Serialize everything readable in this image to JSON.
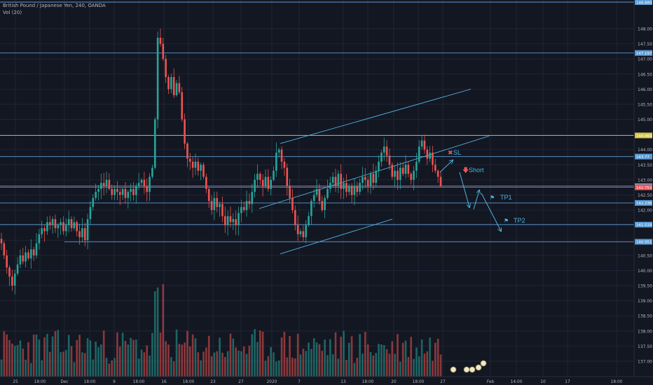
{
  "header": {
    "symbol_line": "British Pound / Japanese Yen, 240, OANDA",
    "volume_line": "Vol (20)"
  },
  "colors": {
    "background": "#131722",
    "grid": "#1f2536",
    "up": "#26a69a",
    "down": "#ef5350",
    "level": "#5b9bd5",
    "yellow_level": "#d6c642",
    "annotation": "#4fb3e0",
    "axis_text": "#b2b5be"
  },
  "annotations": {
    "sl": "SL",
    "short": "Short",
    "tp1": "TP1",
    "tp2": "TP2"
  },
  "chart_data": {
    "type": "candlestick",
    "title": "British Pound / Japanese Yen, 240, OANDA",
    "indicator": "Vol (20)",
    "ylim": [
      136.6,
      148.9
    ],
    "y_ticks": [
      "137.00",
      "137.50",
      "138.00",
      "138.50",
      "139.00",
      "139.50",
      "140.00",
      "140.50",
      "141.00",
      "141.50",
      "142.00",
      "142.50",
      "143.00",
      "143.50",
      "144.00",
      "144.50",
      "145.00",
      "145.50",
      "146.00",
      "146.50",
      "147.00",
      "147.50",
      "148.00"
    ],
    "x_ticks": [
      "25",
      "18:00",
      "Dec",
      "18:00",
      "9",
      "18:00",
      "16",
      "18:00",
      "23",
      "27",
      "2020",
      "7",
      "13",
      "18:00",
      "20",
      "18:00",
      "27",
      "Feb",
      "14:00",
      "10",
      "17",
      "18:00"
    ],
    "price_levels": [
      {
        "label": "148.880",
        "value": 148.88,
        "color": "#5b9bd5"
      },
      {
        "label": "147.197",
        "value": 147.197,
        "color": "#5b9bd5"
      },
      {
        "label": "144.469",
        "value": 144.469,
        "color": "#d6c642"
      },
      {
        "label": "143.77",
        "value": 143.77,
        "color": "#5b9bd5"
      },
      {
        "label": "142.793",
        "value": 142.793,
        "color": "#5b9bd5"
      },
      {
        "label": "142.753",
        "value": 142.753,
        "color": "#ef5350"
      },
      {
        "label": "142.236",
        "value": 142.236,
        "color": "#5b9bd5"
      },
      {
        "label": "141.519",
        "value": 141.519,
        "color": "#5b9bd5"
      },
      {
        "label": "140.951",
        "value": 140.951,
        "color": "#5b9bd5"
      }
    ],
    "channel": {
      "upper": [
        [
          400,
          144.2
        ],
        [
          672,
          146.0
        ]
      ],
      "lower": [
        [
          370,
          142.05
        ],
        [
          698,
          144.45
        ]
      ],
      "base": [
        [
          400,
          140.55
        ],
        [
          560,
          141.7
        ]
      ]
    },
    "closes": [
      140.9,
      140.5,
      140.1,
      139.8,
      139.5,
      139.9,
      140.2,
      140.5,
      140.3,
      140.6,
      140.4,
      140.7,
      140.5,
      140.9,
      141.2,
      141.4,
      141.3,
      141.6,
      141.5,
      141.7,
      141.4,
      141.5,
      141.6,
      141.3,
      141.5,
      141.7,
      141.4,
      141.6,
      141.3,
      141.1,
      141.4,
      141.0,
      141.7,
      142.1,
      142.4,
      142.6,
      142.7,
      142.9,
      142.8,
      143.0,
      142.7,
      142.5,
      142.7,
      142.6,
      142.5,
      142.7,
      142.4,
      142.6,
      142.7,
      142.5,
      142.8,
      142.9,
      143.0,
      142.8,
      142.6,
      143.1,
      143.4,
      145.0,
      147.7,
      147.5,
      147.0,
      146.4,
      146.0,
      146.4,
      145.8,
      146.2,
      145.9,
      145.0,
      144.2,
      143.7,
      143.6,
      143.4,
      143.6,
      143.3,
      143.5,
      143.1,
      142.7,
      142.3,
      142.0,
      142.4,
      142.1,
      142.2,
      141.8,
      141.5,
      141.8,
      141.6,
      141.7,
      141.5,
      141.9,
      142.1,
      142.0,
      142.3,
      142.2,
      142.6,
      143.0,
      143.2,
      143.0,
      142.8,
      143.1,
      142.7,
      143.0,
      143.3,
      143.9,
      144.0,
      143.6,
      143.4,
      142.8,
      142.4,
      142.0,
      141.5,
      141.2,
      141.3,
      141.1,
      141.5,
      141.8,
      142.3,
      142.5,
      142.7,
      142.3,
      142.0,
      142.4,
      142.7,
      142.9,
      143.1,
      142.8,
      143.2,
      142.7,
      142.9,
      142.6,
      142.8,
      142.5,
      142.8,
      142.6,
      142.9,
      143.1,
      143.0,
      142.8,
      143.2,
      142.9,
      143.3,
      143.6,
      143.9,
      144.1,
      143.8,
      143.5,
      143.1,
      143.3,
      143.0,
      143.4,
      143.2,
      143.5,
      143.2,
      143.0,
      143.3,
      143.6,
      144.1,
      144.3,
      144.0,
      143.7,
      143.9,
      143.5,
      143.3,
      143.1,
      142.8
    ]
  }
}
